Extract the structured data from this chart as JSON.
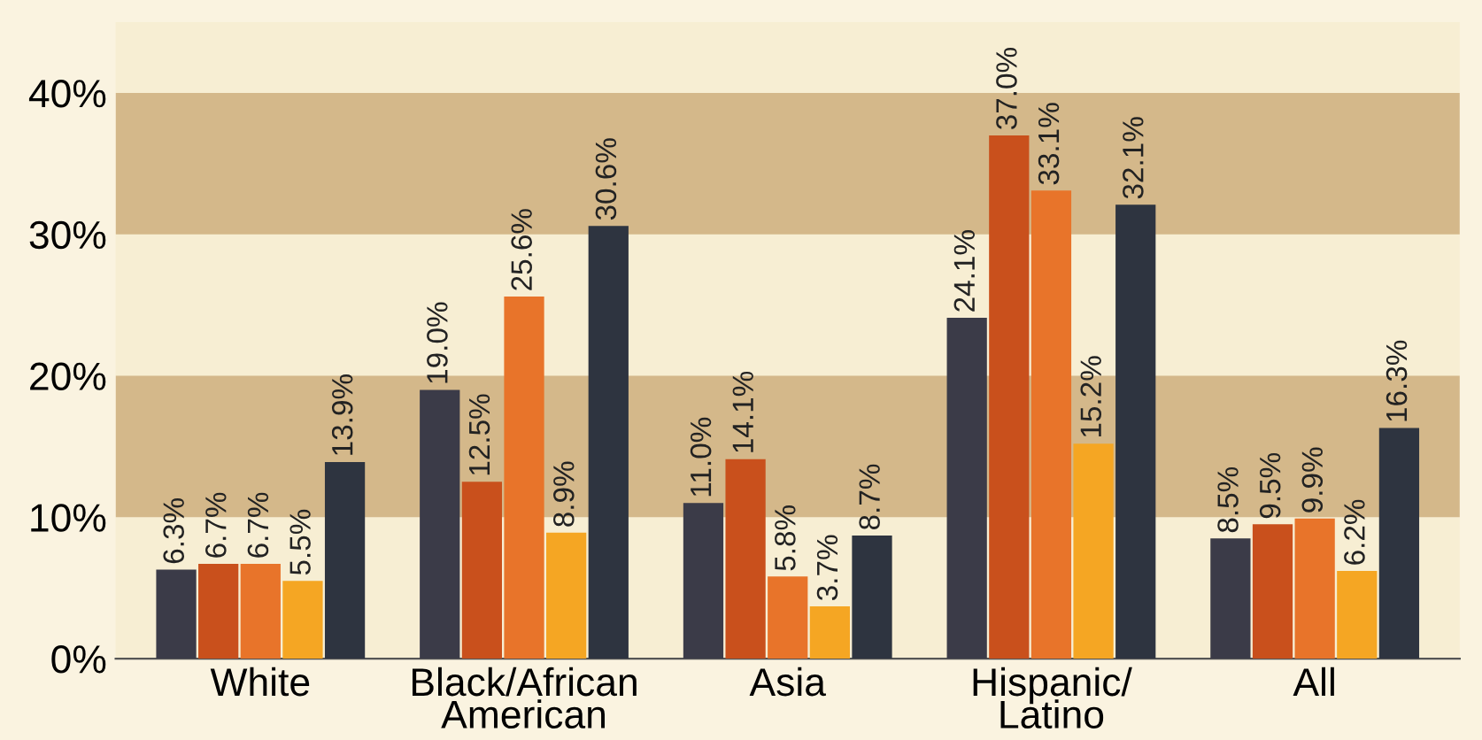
{
  "chart_data": {
    "type": "bar",
    "categories": [
      "White",
      "Black/African\nAmerican",
      "Asia",
      "Hispanic/\nLatino",
      "All"
    ],
    "series": [
      {
        "color": "#3b3b48",
        "values": [
          6.3,
          19.0,
          11.0,
          24.1,
          8.5
        ],
        "value_labels": [
          "6.3%",
          "19.0%",
          "11.0%",
          "24.1%",
          "8.5%"
        ]
      },
      {
        "color": "#c9501c",
        "values": [
          6.7,
          12.5,
          14.1,
          37.0,
          9.5
        ],
        "value_labels": [
          "6.7%",
          "12.5%",
          "14.1%",
          "37.0%",
          "9.5%"
        ]
      },
      {
        "color": "#e8742a",
        "values": [
          6.7,
          25.6,
          5.8,
          33.1,
          9.9
        ],
        "value_labels": [
          "6.7%",
          "25.6%",
          "5.8%",
          "33.1%",
          "9.9%"
        ]
      },
      {
        "color": "#f5a623",
        "values": [
          5.5,
          8.9,
          3.7,
          15.2,
          6.2
        ],
        "value_labels": [
          "5.5%",
          "8.9%",
          "3.7%",
          "15.2%",
          "6.2%"
        ]
      },
      {
        "color": "#2e3440",
        "values": [
          13.9,
          30.6,
          8.7,
          32.1,
          16.3
        ],
        "value_labels": [
          "13.9%",
          "30.6%",
          "8.7%",
          "32.1%",
          "16.3%"
        ]
      }
    ],
    "ylim": [
      0,
      45
    ],
    "yticks": [
      {
        "value": 0,
        "label": "0%"
      },
      {
        "value": 10,
        "label": "10%"
      },
      {
        "value": 20,
        "label": "20%"
      },
      {
        "value": 30,
        "label": "30%"
      },
      {
        "value": 40,
        "label": "40%"
      }
    ],
    "bands": [
      {
        "axis": "y",
        "from": 10,
        "to": 20,
        "color": "#d4b88a"
      },
      {
        "axis": "y",
        "from": 30,
        "to": 40,
        "color": "#d4b88a"
      }
    ],
    "grid": false,
    "legend": false
  }
}
